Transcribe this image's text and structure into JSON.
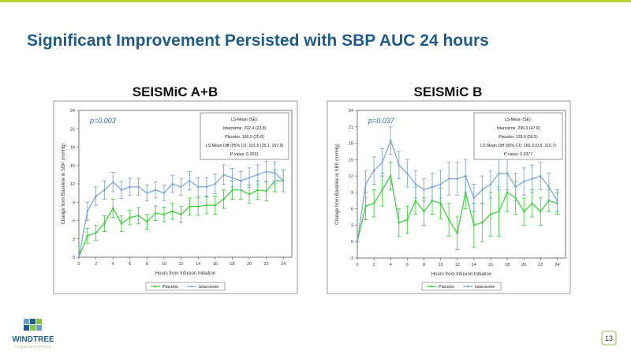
{
  "header": {
    "title": "Significant Improvement Persisted with SBP AUC 24 hours"
  },
  "footer": {
    "logo_name": "WINDTREE",
    "logo_tagline": "THERAPEUTICS",
    "page_number": "13"
  },
  "chart_data": [
    {
      "type": "line",
      "title": "SEISMiC A+B",
      "annotation": "p=0.003",
      "stats_box": [
        "LS-Mean (SE):",
        "Istaroxime: 292.4 (23.8)",
        "Placebo: 190.9 (25.8)",
        "LS Mean Diff (95% CI): 101.5 (35.1, 167.9)",
        "P-value: 0.0031"
      ],
      "xlabel": "Hours from Infusion Initiation",
      "ylabel": "Change from Baseline in SBP (mmHg)",
      "x": [
        0,
        1,
        2,
        3,
        4,
        5,
        6,
        7,
        8,
        9,
        10,
        11,
        12,
        13,
        14,
        15,
        16,
        17,
        18,
        19,
        20,
        21,
        22,
        23,
        24
      ],
      "xlim": [
        0,
        25
      ],
      "xticks": [
        0,
        2,
        4,
        6,
        8,
        10,
        12,
        14,
        16,
        18,
        20,
        22,
        24
      ],
      "ylim": [
        0,
        24
      ],
      "yticks": [
        0,
        3,
        6,
        9,
        12,
        15,
        18,
        21,
        24
      ],
      "legend": "bottom",
      "series": [
        {
          "name": "Placebo",
          "color": "#3fd23f",
          "values": [
            0,
            3.5,
            4,
            5.5,
            8,
            5.5,
            6.5,
            6.8,
            5.8,
            7.2,
            7,
            7.5,
            7,
            8.3,
            8.3,
            8.5,
            8.5,
            9.5,
            11,
            11,
            10.3,
            11,
            10.8,
            12.5,
            12.5
          ],
          "errors": [
            0,
            1.2,
            1.2,
            1.3,
            1.5,
            1.3,
            1.2,
            1.3,
            1.2,
            1.2,
            1.2,
            1.3,
            1.3,
            1.4,
            1.4,
            1.4,
            1.5,
            1.5,
            1.5,
            1.5,
            1.5,
            1.5,
            1.6,
            1.8,
            1.8
          ]
        },
        {
          "name": "Istaroxime",
          "color": "#7fa6dc",
          "values": [
            0,
            7.5,
            10,
            11,
            12.3,
            11,
            11.5,
            11.5,
            10.5,
            11,
            10.5,
            12,
            11.5,
            12.5,
            11.5,
            11.5,
            12,
            13.5,
            13,
            12.5,
            13,
            13.5,
            14,
            13.8,
            12.5
          ],
          "errors": [
            0,
            1.5,
            1.5,
            1.5,
            1.6,
            1.4,
            1.4,
            1.4,
            1.3,
            1.3,
            1.3,
            1.4,
            1.4,
            1.5,
            1.5,
            1.5,
            1.6,
            1.6,
            1.5,
            1.5,
            1.6,
            1.6,
            1.7,
            1.8,
            1.8
          ]
        }
      ]
    },
    {
      "type": "line",
      "title": "SEISMiC B",
      "annotation": "p=0.037",
      "stats_box": [
        "LS-Mean (SE):",
        "Istaroxime: 299.3 (47.9)",
        "Placebo: 139.0 (55.5)",
        "LS Mean Diff (95% CI): 160.3 (9.8, 310.7)",
        "P-value: 0.0377"
      ],
      "xlabel": "Hours from Infusion Initiation",
      "ylabel": "Change from Baseline in SBP (mmHg)",
      "x": [
        0,
        1,
        2,
        3,
        4,
        5,
        6,
        7,
        8,
        9,
        10,
        11,
        12,
        13,
        14,
        15,
        16,
        17,
        18,
        19,
        20,
        21,
        22,
        23,
        24
      ],
      "xlim": [
        0,
        25
      ],
      "xticks": [
        0,
        2,
        4,
        6,
        8,
        10,
        12,
        14,
        16,
        18,
        20,
        22,
        24
      ],
      "ylim": [
        -3,
        24
      ],
      "yticks": [
        -3,
        0,
        3,
        6,
        9,
        12,
        15,
        18,
        21,
        24
      ],
      "legend": "bottom",
      "series": [
        {
          "name": "Placebo",
          "color": "#3fd23f",
          "values": [
            0,
            6.5,
            7,
            9.5,
            12,
            3.5,
            4,
            7.5,
            5.5,
            7.5,
            7,
            4,
            1.5,
            9,
            3,
            3.5,
            5,
            5.5,
            9,
            8,
            5.5,
            7,
            5.5,
            7.5,
            7
          ],
          "errors": [
            0,
            2.5,
            2.5,
            3,
            2.5,
            2.5,
            2.5,
            2.5,
            2.5,
            2.5,
            2.8,
            3,
            3,
            3,
            4,
            3.5,
            4,
            4.5,
            3.5,
            3,
            2.5,
            2.5,
            2.5,
            2,
            2
          ]
        },
        {
          "name": "Istaroxime",
          "color": "#7fa6dc",
          "values": [
            0,
            10.5,
            13,
            14.5,
            18.5,
            14,
            12.5,
            10.5,
            9.5,
            10,
            10.5,
            11.5,
            11.5,
            12,
            8,
            9.5,
            10.5,
            12.5,
            12.5,
            10,
            11,
            11.5,
            12,
            10,
            7.5
          ],
          "errors": [
            0,
            2.5,
            2.5,
            2.5,
            2.5,
            2.5,
            2.5,
            2.5,
            2,
            2.5,
            2.5,
            3,
            3,
            3,
            2.5,
            2.5,
            2.5,
            3,
            3,
            2.5,
            2.5,
            2.5,
            2.5,
            2.5,
            2
          ]
        }
      ]
    }
  ]
}
